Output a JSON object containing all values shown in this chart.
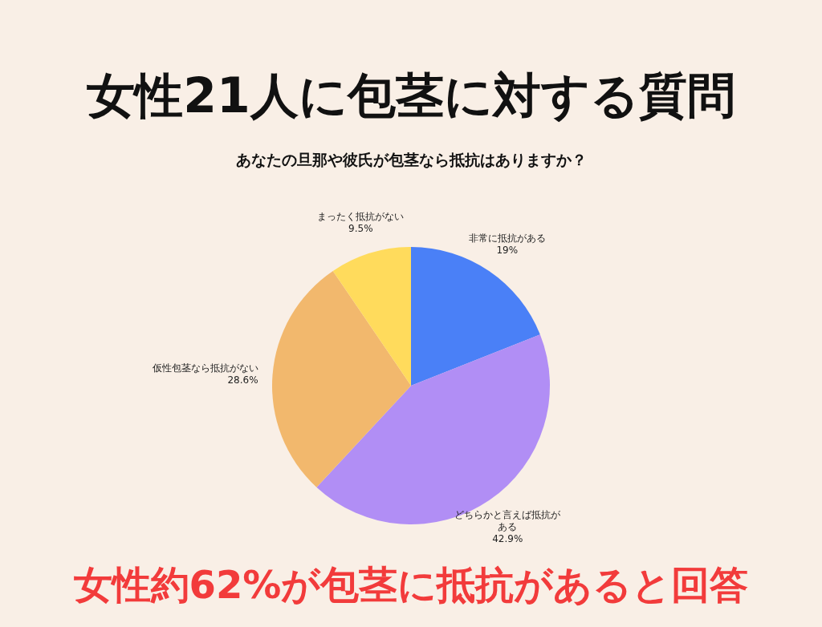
{
  "chart_data": {
    "type": "pie",
    "title": "女性21人に包茎に対する質問",
    "subtitle": "あなたの旦那や彼氏が包茎なら抵抗はありますか？",
    "categories": [
      "非常に抵抗がある",
      "どちらかと言えば抵抗がある",
      "仮性包茎なら抵抗がない",
      "まったく抵抗がない"
    ],
    "values": [
      19,
      42.9,
      28.6,
      9.5
    ],
    "colors": [
      "#4a80f7",
      "#b18ef5",
      "#f2b86d",
      "#ffdb5c"
    ],
    "value_labels": [
      "19%",
      "42.9%",
      "28.6%",
      "9.5%"
    ],
    "annotations": [
      "女性約62%が包茎に抵抗があると回答"
    ]
  }
}
